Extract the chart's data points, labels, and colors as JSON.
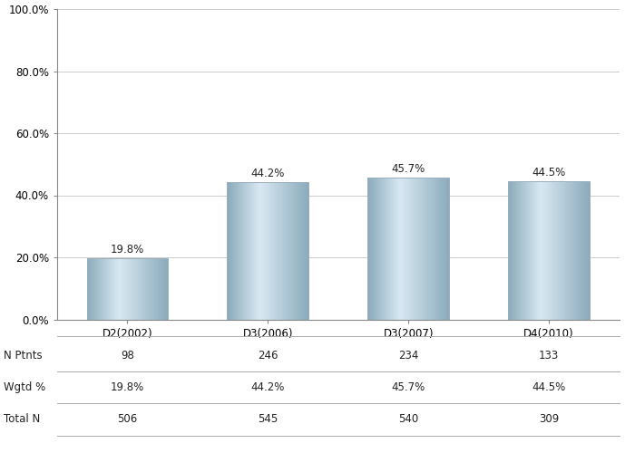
{
  "categories": [
    "D2(2002)",
    "D3(2006)",
    "D3(2007)",
    "D4(2010)"
  ],
  "values": [
    19.8,
    44.2,
    45.7,
    44.5
  ],
  "bar_labels": [
    "19.8%",
    "44.2%",
    "45.7%",
    "44.5%"
  ],
  "n_ptnts": [
    98,
    246,
    234,
    133
  ],
  "wgtd_pct": [
    "19.8%",
    "44.2%",
    "45.7%",
    "44.5%"
  ],
  "total_n": [
    506,
    545,
    540,
    309
  ],
  "ylim": [
    0,
    100
  ],
  "yticks": [
    0,
    20,
    40,
    60,
    80,
    100
  ],
  "ytick_labels": [
    "0.0%",
    "20.0%",
    "40.0%",
    "60.0%",
    "80.0%",
    "100.0%"
  ],
  "bar_color_light": "#d8e8f0",
  "bar_color_dark": "#8aaabb",
  "bar_edge_color": "#9ab0be",
  "background_color": "#ffffff",
  "grid_color": "#cccccc",
  "table_row_labels": [
    "N Ptnts",
    "Wgtd %",
    "Total N"
  ],
  "tick_fontsize": 8.5,
  "table_fontsize": 8.5,
  "bar_label_fontsize": 8.5
}
